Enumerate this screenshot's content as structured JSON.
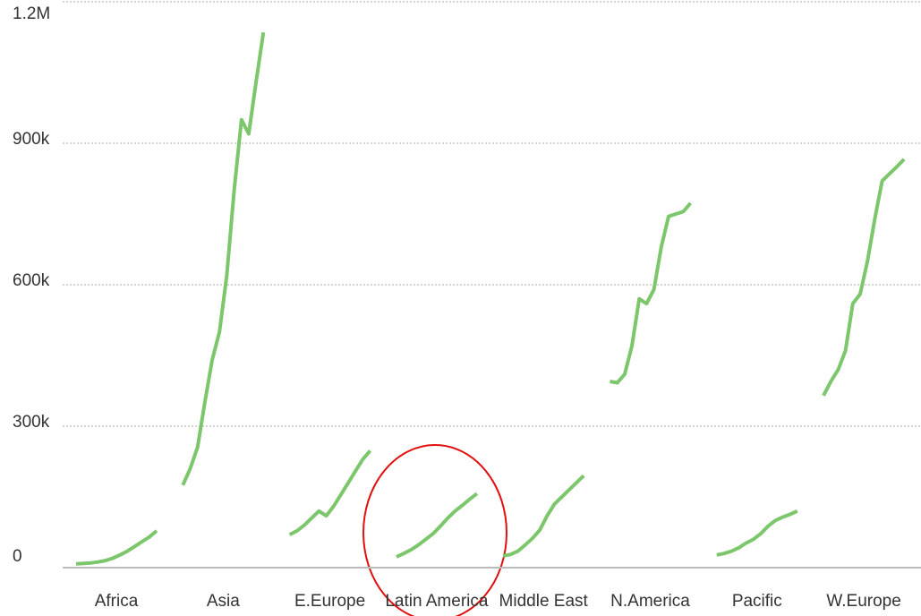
{
  "chart_data": {
    "type": "line",
    "categories": [
      "Africa",
      "Asia",
      "E.Europe",
      "Latin America",
      "Middle East",
      "N.America",
      "Pacific",
      "W.Europe"
    ],
    "values": [
      [
        8000,
        9000,
        10000,
        12000,
        15000,
        20000,
        27000,
        35000,
        45000,
        55000,
        65000,
        78000
      ],
      [
        175000,
        210000,
        255000,
        350000,
        440000,
        500000,
        620000,
        800000,
        950000,
        920000,
        1030000,
        1135000
      ],
      [
        70000,
        78000,
        90000,
        105000,
        120000,
        110000,
        130000,
        155000,
        180000,
        205000,
        230000,
        248000
      ],
      [
        23000,
        30000,
        38000,
        48000,
        60000,
        72000,
        88000,
        105000,
        120000,
        132000,
        145000,
        157000
      ],
      [
        25000,
        28000,
        35000,
        48000,
        62000,
        80000,
        110000,
        135000,
        150000,
        165000,
        180000,
        195000
      ],
      [
        395000,
        392000,
        410000,
        470000,
        570000,
        560000,
        590000,
        680000,
        745000,
        750000,
        755000,
        773000
      ],
      [
        27000,
        30000,
        35000,
        42000,
        52000,
        60000,
        72000,
        88000,
        100000,
        107000,
        113000,
        120000
      ],
      [
        365000,
        395000,
        420000,
        460000,
        560000,
        580000,
        650000,
        740000,
        820000,
        835000,
        850000,
        866000
      ]
    ],
    "color": "#7cc66c",
    "ylim": [
      0,
      1200000
    ],
    "yticks": [
      0,
      {
        "value": 300000,
        "label": "300k"
      },
      {
        "value": 600000,
        "label": "600k"
      },
      {
        "value": 900000,
        "label": "900k"
      },
      {
        "value": 1200000,
        "label": "1.2M"
      }
    ],
    "grid": true
  }
}
